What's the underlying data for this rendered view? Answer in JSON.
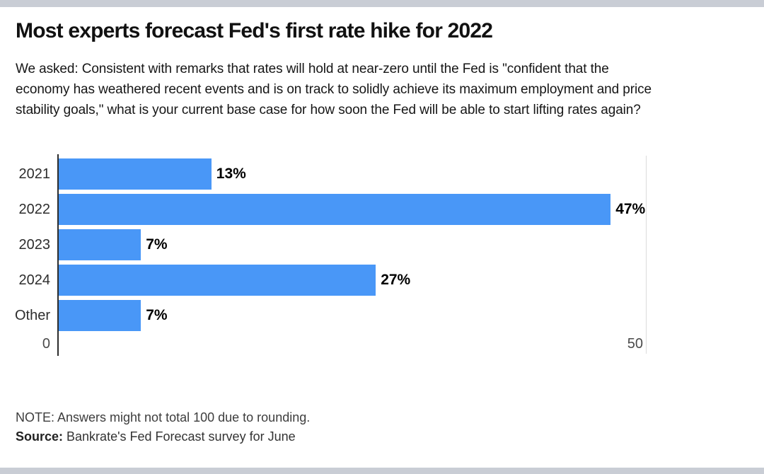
{
  "header": {
    "title": "Most experts forecast Fed's first rate hike for 2022",
    "subtitle_lines": [
      "We asked: Consistent with remarks that rates will hold at near-zero until the Fed is \"confident that the",
      "economy has weathered recent events and is on track to solidly achieve its maximum employment and price",
      "stability goals,\" what is your current base case for how soon the Fed will be able to start lifting rates again?"
    ]
  },
  "chart_data": {
    "type": "bar",
    "orientation": "horizontal",
    "title": "Most experts forecast Fed's first rate hike for 2022",
    "categories": [
      "2021",
      "2022",
      "2023",
      "2024",
      "Other"
    ],
    "values": [
      13,
      47,
      7,
      27,
      7
    ],
    "value_labels": [
      "13%",
      "47%",
      "7%",
      "27%",
      "7%"
    ],
    "x_ticks": [
      "0",
      "50"
    ],
    "xlim": [
      0,
      50
    ],
    "xlabel": "",
    "ylabel": "",
    "legend": "none",
    "grid": "single vertical gridline at 50",
    "bar_color": "#4997f7",
    "axis_color": "#2c2c2c",
    "gridline_color": "#dcdcdc"
  },
  "footer": {
    "note": "NOTE: Answers might not total 100 due to rounding.",
    "source_label": "Source:",
    "source_text": " Bankrate's Fed Forecast survey for June"
  }
}
